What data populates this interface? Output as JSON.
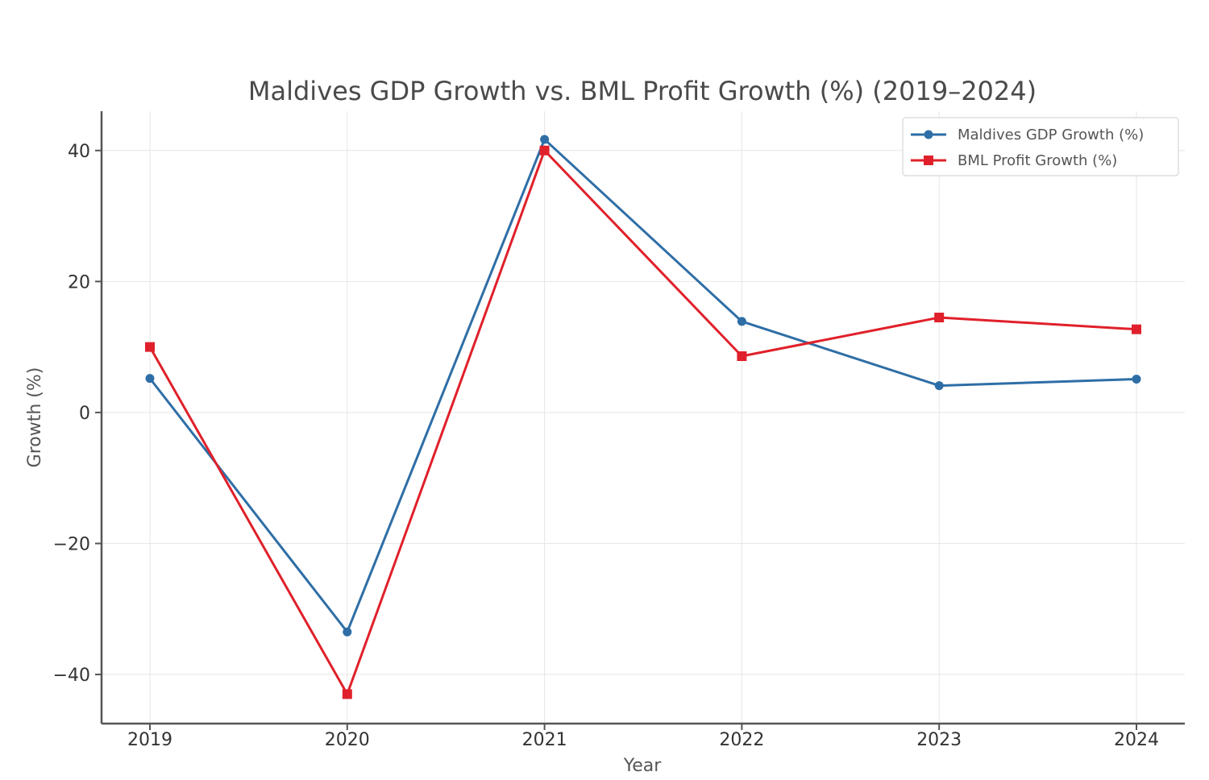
{
  "chart_data": {
    "type": "line",
    "title": "Maldives GDP Growth vs. BML Profit Growth (%) (2019–2024)",
    "xlabel": "Year",
    "ylabel": "Growth (%)",
    "categories": [
      "2019",
      "2020",
      "2021",
      "2022",
      "2023",
      "2024"
    ],
    "ylim": [
      -47.5,
      46
    ],
    "yticks": [
      40,
      20,
      0,
      -20,
      -40
    ],
    "ytick_labels": [
      "40",
      "20",
      "0",
      "−20",
      "−40"
    ],
    "grid": true,
    "legend_position": "top-right",
    "series": [
      {
        "name": "Maldives GDP Growth (%)",
        "color": "#2e6ea6",
        "marker": "circle",
        "values": [
          5.2,
          -33.5,
          41.7,
          13.9,
          4.1,
          5.1
        ]
      },
      {
        "name": "BML Profit Growth (%)",
        "color": "#e0202a",
        "marker": "square",
        "values": [
          10.0,
          -43.0,
          40.0,
          8.6,
          14.5,
          12.7
        ]
      }
    ]
  }
}
